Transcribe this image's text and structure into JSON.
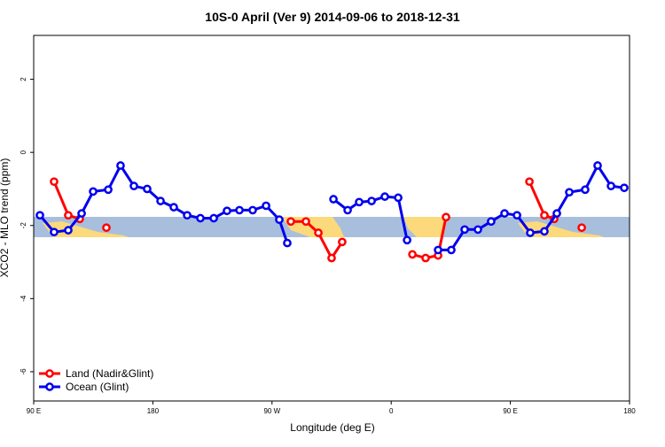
{
  "chart_data": {
    "type": "line",
    "title": "10S-0 April (Ver 9)   2014-09-06 to 2018-12-31",
    "x_label": "Longitude (deg E)",
    "y_label": "XCO2 - MLO trend (ppm)",
    "xlim": [
      90,
      540
    ],
    "ylim": [
      -6.8,
      3.2
    ],
    "xticks": [
      {
        "value": 90,
        "label": "90 E"
      },
      {
        "value": 180,
        "label": "180"
      },
      {
        "value": 270,
        "label": "90 W"
      },
      {
        "value": 360,
        "label": "0"
      },
      {
        "value": 450,
        "label": "90 E"
      },
      {
        "value": 540,
        "label": "180"
      }
    ],
    "yticks": [
      2,
      0,
      -2,
      -4,
      -6
    ],
    "legend": "bottom-left",
    "series": [
      {
        "name": "Land (Nadir&Glint)",
        "color": "#ff0000",
        "x": [
          105.4,
          116.1,
          124.8,
          null,
          144.9,
          null,
          284.2,
          295.6,
          305,
          315,
          323,
          null,
          376,
          386,
          395.4,
          401.4,
          null,
          464.4,
          475.7,
          483.1,
          null,
          503.9
        ],
        "values": [
          -0.8,
          -1.72,
          -1.82,
          null,
          -2.06,
          null,
          -1.89,
          -1.89,
          -2.2,
          -2.89,
          -2.45,
          null,
          -2.79,
          -2.89,
          -2.82,
          -1.77,
          null,
          -0.8,
          -1.72,
          -1.82,
          null,
          -2.06
        ]
      },
      {
        "name": "Ocean (Glint)",
        "color": "#0000ee",
        "x": [
          94.7,
          105.4,
          116.1,
          126.2,
          134.9,
          146.3,
          155.6,
          165.7,
          175.7,
          185.8,
          195.8,
          205.9,
          215.9,
          226,
          236,
          245.4,
          255.4,
          265.5,
          275.5,
          281.5,
          null,
          316.4,
          327.1,
          335.8,
          345.2,
          355.2,
          365.3,
          372,
          null,
          395.4,
          405.4,
          415.5,
          425.5,
          435.5,
          445.6,
          455,
          465,
          475.7,
          485.1,
          494.5,
          506.5,
          515.9,
          526,
          536
        ],
        "values": [
          -1.72,
          -2.18,
          -2.13,
          -1.67,
          -1.07,
          -1.02,
          -0.36,
          -0.92,
          -1.0,
          -1.33,
          -1.5,
          -1.72,
          -1.8,
          -1.8,
          -1.6,
          -1.58,
          -1.58,
          -1.46,
          -1.84,
          -2.48,
          null,
          -1.28,
          -1.58,
          -1.36,
          -1.33,
          -1.21,
          -1.24,
          -2.4,
          null,
          -2.67,
          -2.67,
          -2.11,
          -2.11,
          -1.89,
          -1.67,
          -1.72,
          -2.2,
          -2.16,
          -1.67,
          -1.09,
          -1.02,
          -0.36,
          -0.92,
          -0.97
        ]
      }
    ]
  }
}
